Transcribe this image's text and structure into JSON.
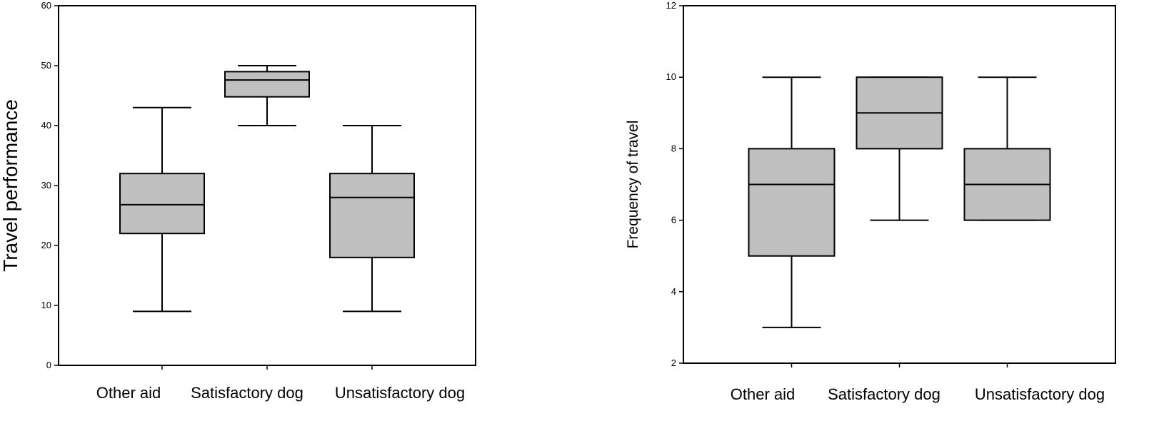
{
  "chart_data": [
    {
      "type": "boxplot",
      "title": "",
      "xlabel": "",
      "ylabel": "Travel performance",
      "ylim": [
        0,
        60
      ],
      "yticks": [
        0,
        10,
        20,
        30,
        40,
        50,
        60
      ],
      "grid": false,
      "categories": [
        "Other aid",
        "Satisfactory dog",
        "Unsatisfactory dog"
      ],
      "boxes": [
        {
          "category": "Other aid",
          "min": 9,
          "q1": 22,
          "median": 26.8,
          "q3": 32,
          "max": 43
        },
        {
          "category": "Satisfactory dog",
          "min": 40,
          "q1": 44.8,
          "median": 47.6,
          "q3": 49,
          "max": 50
        },
        {
          "category": "Unsatisfactory dog",
          "min": 9,
          "q1": 18,
          "median": 28,
          "q3": 32,
          "max": 40
        }
      ],
      "box_color": "#c0c0c0"
    },
    {
      "type": "boxplot",
      "title": "",
      "xlabel": "",
      "ylabel": "Frequency of travel",
      "ylim": [
        2,
        12
      ],
      "yticks": [
        2,
        4,
        6,
        8,
        10,
        12
      ],
      "grid": false,
      "categories": [
        "Other aid",
        "Satisfactory dog",
        "Unsatisfactory dog"
      ],
      "boxes": [
        {
          "category": "Other aid",
          "min": 3,
          "q1": 5,
          "median": 7,
          "q3": 8,
          "max": 10
        },
        {
          "category": "Satisfactory dog",
          "min": 6,
          "q1": 8,
          "median": 9,
          "q3": 10,
          "max": 10
        },
        {
          "category": "Unsatisfactory dog",
          "min": 6,
          "q1": 6,
          "median": 7,
          "q3": 8,
          "max": 10
        }
      ],
      "box_color": "#c0c0c0"
    }
  ]
}
